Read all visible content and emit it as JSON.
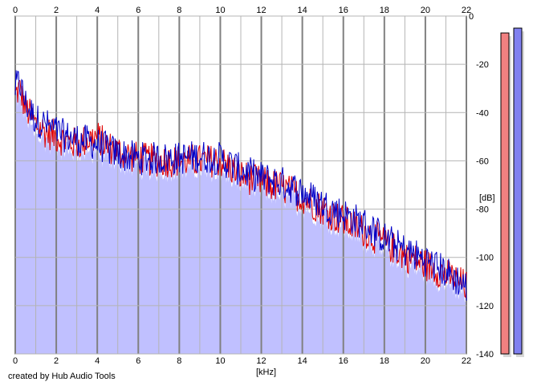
{
  "credit": "created by Hub Audio Tools",
  "chart_data": {
    "type": "area",
    "xlabel": "[kHz]",
    "ylabel": "[dB]",
    "xlim": [
      0,
      22
    ],
    "ylim": [
      -140,
      0
    ],
    "x_ticks": [
      0,
      2,
      4,
      6,
      8,
      10,
      12,
      14,
      16,
      18,
      20,
      22
    ],
    "y_ticks": [
      0,
      -20,
      -40,
      -60,
      -80,
      -100,
      -120,
      -140
    ],
    "grid": true,
    "colors": {
      "fill": "#c0c0ff",
      "left_line": "#e00000",
      "right_line": "#0000c8",
      "grid": "#b4b4b4",
      "major_grid": "#808080",
      "left_meter": "#f08080",
      "right_meter": "#8080f0"
    },
    "series": [
      {
        "x": [
          0,
          0.2,
          0.5,
          1,
          1.5,
          2,
          2.5,
          3,
          4,
          4.5,
          5,
          6,
          7,
          8,
          9,
          10,
          11,
          12,
          13,
          14,
          15,
          16,
          17,
          18,
          19,
          20,
          21,
          22
        ],
        "values": [
          -33,
          -30,
          -38,
          -45,
          -48,
          -50,
          -52,
          -53,
          -50,
          -54,
          -56,
          -59,
          -60,
          -60,
          -60,
          -60,
          -66,
          -69,
          -71,
          -75,
          -80,
          -85,
          -89,
          -94,
          -99,
          -103,
          -107,
          -112
        ]
      },
      {
        "x": [
          0,
          0.2,
          0.5,
          1,
          1.5,
          2,
          2.5,
          3,
          4,
          4.5,
          5,
          6,
          7,
          8,
          9,
          10,
          11,
          12,
          13,
          14,
          15,
          16,
          17,
          18,
          19,
          20,
          21,
          22
        ],
        "values": [
          -30,
          -27,
          -36,
          -43,
          -45,
          -48,
          -50,
          -51,
          -53,
          -55,
          -57,
          -59,
          -59,
          -59,
          -58,
          -59,
          -64,
          -67,
          -69,
          -73,
          -78,
          -82,
          -86,
          -92,
          -97,
          -101,
          -106,
          -112
        ]
      }
    ],
    "levels": [
      -7,
      -5
    ]
  }
}
